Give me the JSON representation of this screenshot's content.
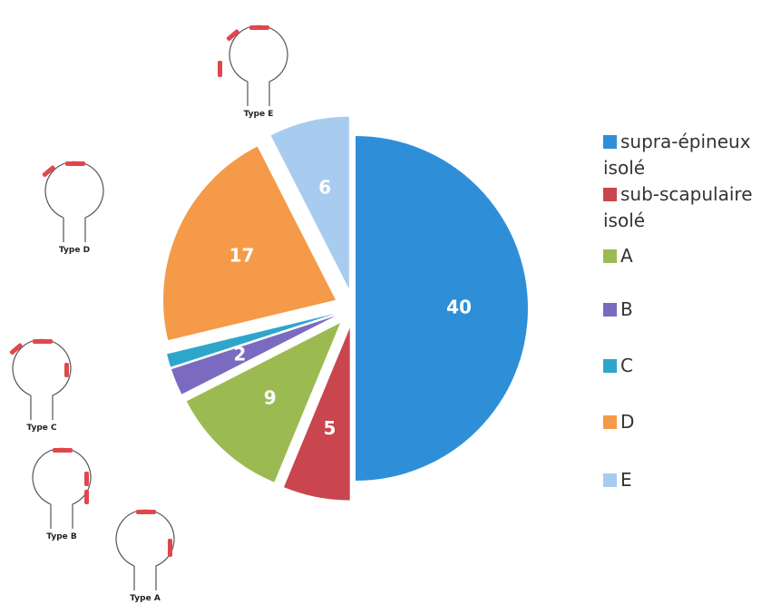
{
  "chart_data": {
    "type": "pie",
    "categories": [
      "supra-épineux isolé",
      "sub-scapulaire isolé",
      "A",
      "B",
      "C",
      "D",
      "E"
    ],
    "values": [
      40,
      5,
      9,
      2,
      1,
      17,
      6
    ],
    "value_labels": [
      "40",
      "5",
      "9",
      "2",
      null,
      "17",
      "6"
    ],
    "colors": [
      "#2e8fd8",
      "#c9464f",
      "#9bbb52",
      "#7a6bc0",
      "#2ea6cc",
      "#f59a48",
      "#a8ccef"
    ],
    "annotations": [
      "Type E",
      "Type D",
      "Type C",
      "Type B",
      "Type A"
    ],
    "legend": "right"
  }
}
